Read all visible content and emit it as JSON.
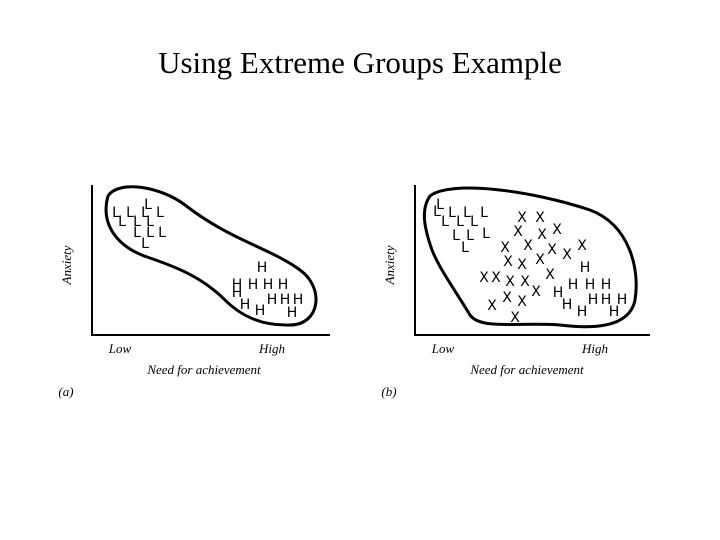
{
  "title": "Using Extreme Groups Example",
  "panels": [
    {
      "y_label": "Anxiety",
      "x_label": "Need for achievement",
      "low": "Low",
      "high": "High",
      "tag": "(a)",
      "letters": [
        "L",
        "L",
        "L",
        "L",
        "L",
        "L",
        "L",
        "L",
        "L",
        "L",
        "L",
        "L",
        "H",
        "H",
        "H",
        "H",
        "H",
        "H",
        "H",
        "H",
        "H",
        "H",
        "H",
        "H"
      ]
    },
    {
      "y_label": "Anxiety",
      "x_label": "Need for achievement",
      "low": "Low",
      "high": "High",
      "tag": "(b)",
      "letters": [
        "L",
        "L",
        "L",
        "L",
        "L",
        "L",
        "L",
        "L",
        "L",
        "L",
        "L",
        "L",
        "X",
        "X",
        "X",
        "X",
        "X",
        "X",
        "X",
        "X",
        "X",
        "X",
        "X",
        "X",
        "X",
        "X",
        "X",
        "X",
        "X",
        "X",
        "X",
        "X",
        "X",
        "X",
        "X",
        "H",
        "H",
        "H",
        "H",
        "H",
        "H",
        "H",
        "H",
        "H",
        "H",
        "H"
      ]
    }
  ]
}
